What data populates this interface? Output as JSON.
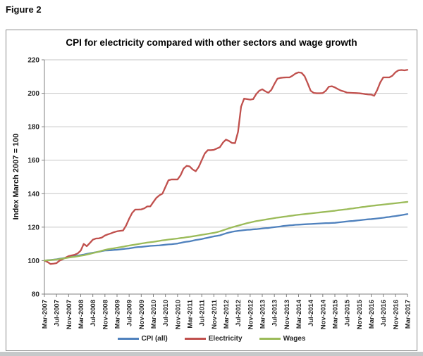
{
  "figure_label": "Figure 2",
  "colors": {
    "axis": "#808080",
    "gridline": "#c6c6c6",
    "tick_label": "#262626",
    "cpi_blue": "#4F81BD",
    "electricity_red": "#C0504D",
    "wages_green": "#9BBB59"
  },
  "chart_data": {
    "type": "line",
    "title": "CPI for electricity compared with other sectors and wage growth",
    "xlabel": "",
    "ylabel": "Index March 2007 = 100",
    "ylim": [
      80,
      220
    ],
    "ytick_step": 20,
    "y_ticks": [
      80,
      100,
      120,
      140,
      160,
      180,
      200,
      220
    ],
    "grid": "horizontal",
    "legend_position": "bottom",
    "x_frequency": "monthly",
    "x_start": "Mar-2007",
    "x_end": "Mar-2017",
    "x_label_every": 4,
    "x_tick_labels": [
      "Mar-2007",
      "Jul-2007",
      "Nov-2007",
      "Mar-2008",
      "Jul-2008",
      "Nov-2008",
      "Mar-2009",
      "Jul-2009",
      "Nov-2009",
      "Mar-2010",
      "Jul-2010",
      "Nov-2010",
      "Mar-2011",
      "Jul-2011",
      "Nov-2011",
      "Mar-2012",
      "Jul-2012",
      "Nov-2012",
      "Mar-2013",
      "Jul-2013",
      "Nov-2013",
      "Mar-2014",
      "Jul-2014",
      "Nov-2014",
      "Mar-2015",
      "Jul-2015",
      "Nov-2015",
      "Mar-2016",
      "Jul-2016",
      "Nov-2016",
      "Mar-2017"
    ],
    "series": [
      {
        "name": "CPI (all)",
        "color": "#4F81BD",
        "values": [
          100,
          100.2,
          100.4,
          100.6,
          100.8,
          101.1,
          101.4,
          101.7,
          102,
          102.3,
          102.6,
          103,
          103.3,
          103.6,
          104,
          104.4,
          104.7,
          105,
          105.3,
          105.7,
          106,
          106.1,
          106.2,
          106.4,
          106.5,
          106.7,
          106.9,
          107.1,
          107.3,
          107.6,
          107.9,
          108.1,
          108.2,
          108.4,
          108.6,
          108.8,
          108.9,
          109,
          109.1,
          109.3,
          109.5,
          109.7,
          109.8,
          110,
          110.2,
          110.6,
          111,
          111.3,
          111.5,
          111.9,
          112.3,
          112.6,
          112.9,
          113.3,
          113.7,
          114.1,
          114.5,
          114.8,
          115.1,
          115.7,
          116.3,
          116.8,
          117.2,
          117.5,
          117.8,
          118,
          118.2,
          118.4,
          118.5,
          118.7,
          118.8,
          119,
          119.2,
          119.4,
          119.5,
          119.8,
          120,
          120.2,
          120.4,
          120.7,
          120.9,
          121.1,
          121.2,
          121.4,
          121.5,
          121.6,
          121.7,
          121.8,
          121.9,
          122,
          122.1,
          122.2,
          122.3,
          122.4,
          122.4,
          122.5,
          122.6,
          122.8,
          123,
          123.2,
          123.4,
          123.6,
          123.7,
          123.9,
          124.1,
          124.3,
          124.5,
          124.7,
          124.8,
          125,
          125.2,
          125.4,
          125.6,
          125.9,
          126.1,
          126.4,
          126.6,
          126.9,
          127.2,
          127.5,
          127.8
        ]
      },
      {
        "name": "Electricity",
        "color": "#C0504D",
        "values": [
          100,
          99.2,
          98,
          98.2,
          98.5,
          100,
          100.8,
          101.8,
          102.7,
          103.1,
          103.5,
          104.3,
          106,
          110,
          108.6,
          110.5,
          112.5,
          113.2,
          113.3,
          113.8,
          115,
          115.7,
          116.3,
          117,
          117.5,
          117.8,
          118,
          121,
          125,
          128.5,
          130.5,
          130.5,
          130.6,
          131.2,
          132.4,
          132.4,
          135,
          137.5,
          139,
          140,
          144,
          148,
          148.5,
          148.5,
          148.5,
          151,
          155,
          156.6,
          156.3,
          154.5,
          153.4,
          156,
          160,
          164,
          166,
          166,
          166.2,
          167,
          167.8,
          170.5,
          172.3,
          171.5,
          170.3,
          170.2,
          177,
          192,
          196.8,
          196.5,
          196.2,
          196.5,
          199.5,
          201.5,
          202.4,
          201.2,
          200.3,
          202,
          205.5,
          208.7,
          209.2,
          209.4,
          209.5,
          209.5,
          210.5,
          211.8,
          212.5,
          212.2,
          210.2,
          206,
          201.5,
          200.2,
          200,
          200,
          200.1,
          201.5,
          203.9,
          204.2,
          203.5,
          202.5,
          201.6,
          201.1,
          200.4,
          200.3,
          200.2,
          200.1,
          200,
          199.8,
          199.5,
          199.3,
          199.2,
          198.5,
          202,
          206.5,
          209.5,
          209.5,
          209.5,
          210.5,
          212.5,
          213.7,
          213.9,
          213.7,
          214
        ]
      },
      {
        "name": "Wages",
        "color": "#9BBB59",
        "values": [
          100,
          100.2,
          100.3,
          100.5,
          100.7,
          100.9,
          101.2,
          101.5,
          101.8,
          102.1,
          102.3,
          102.6,
          102.9,
          103.2,
          103.6,
          104,
          104.5,
          104.9,
          105.4,
          105.9,
          106.4,
          106.8,
          107.1,
          107.4,
          107.7,
          108,
          108.3,
          108.7,
          109,
          109.3,
          109.6,
          109.9,
          110.2,
          110.5,
          110.8,
          111,
          111.2,
          111.5,
          111.8,
          112.1,
          112.3,
          112.6,
          112.8,
          113,
          113.2,
          113.5,
          113.7,
          114,
          114.2,
          114.5,
          114.8,
          115.1,
          115.4,
          115.7,
          116,
          116.3,
          116.6,
          117,
          117.5,
          118.1,
          118.7,
          119.3,
          119.9,
          120.4,
          120.9,
          121.4,
          121.9,
          122.4,
          122.8,
          123.2,
          123.6,
          123.9,
          124.2,
          124.5,
          124.8,
          125.1,
          125.4,
          125.7,
          125.9,
          126.2,
          126.4,
          126.7,
          126.9,
          127.2,
          127.4,
          127.6,
          127.8,
          128,
          128.2,
          128.4,
          128.6,
          128.8,
          129,
          129.2,
          129.4,
          129.6,
          129.8,
          130.1,
          130.3,
          130.5,
          130.7,
          131,
          131.2,
          131.5,
          131.7,
          132,
          132.2,
          132.5,
          132.7,
          132.9,
          133.1,
          133.3,
          133.5,
          133.7,
          133.9,
          134.1,
          134.3,
          134.5,
          134.7,
          134.9,
          135.1
        ]
      }
    ]
  }
}
